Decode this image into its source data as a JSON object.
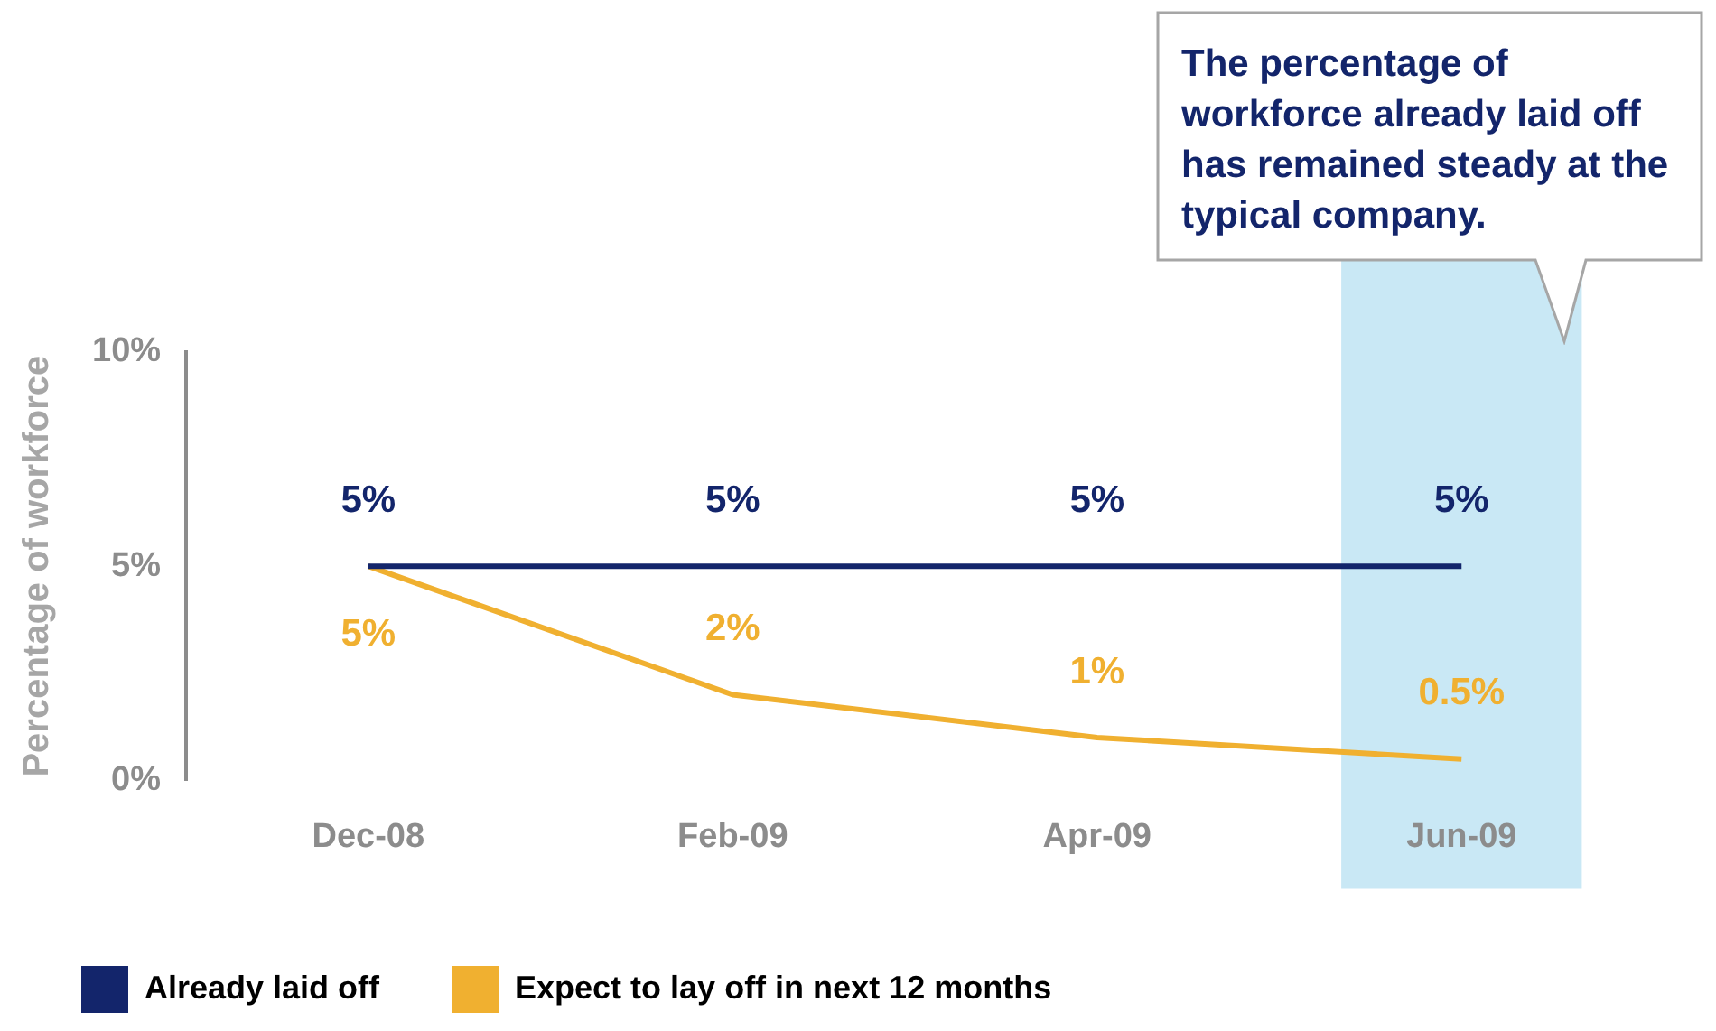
{
  "chart_data": {
    "type": "line",
    "ylabel": "Percentage of workforce",
    "categories": [
      "Dec-08",
      "Feb-09",
      "Apr-09",
      "Jun-09"
    ],
    "series": [
      {
        "name": "Already laid off",
        "color": "#13256b",
        "values": [
          5,
          5,
          5,
          5
        ],
        "value_labels": [
          "5%",
          "5%",
          "5%",
          "5%"
        ]
      },
      {
        "name": "Expect to lay off in next 12 months",
        "color": "#f0b030",
        "values": [
          5,
          2,
          1,
          0.5
        ],
        "value_labels": [
          "5%",
          "2%",
          "1%",
          "0.5%"
        ]
      }
    ],
    "ylim": [
      0,
      10
    ],
    "yticks": [
      {
        "value": 0,
        "label": "0%"
      },
      {
        "value": 5,
        "label": "5%"
      },
      {
        "value": 10,
        "label": "10%"
      }
    ],
    "bands": [
      {
        "axis": "x",
        "from": "Jun-09",
        "to": "Jun-09",
        "color": "#c9e8f5"
      }
    ],
    "annotations": [
      "The percentage of workforce already laid off has remained steady at the typical company."
    ],
    "grid": false,
    "marker": "none",
    "line_style": "solid",
    "legend": "bottom left"
  }
}
